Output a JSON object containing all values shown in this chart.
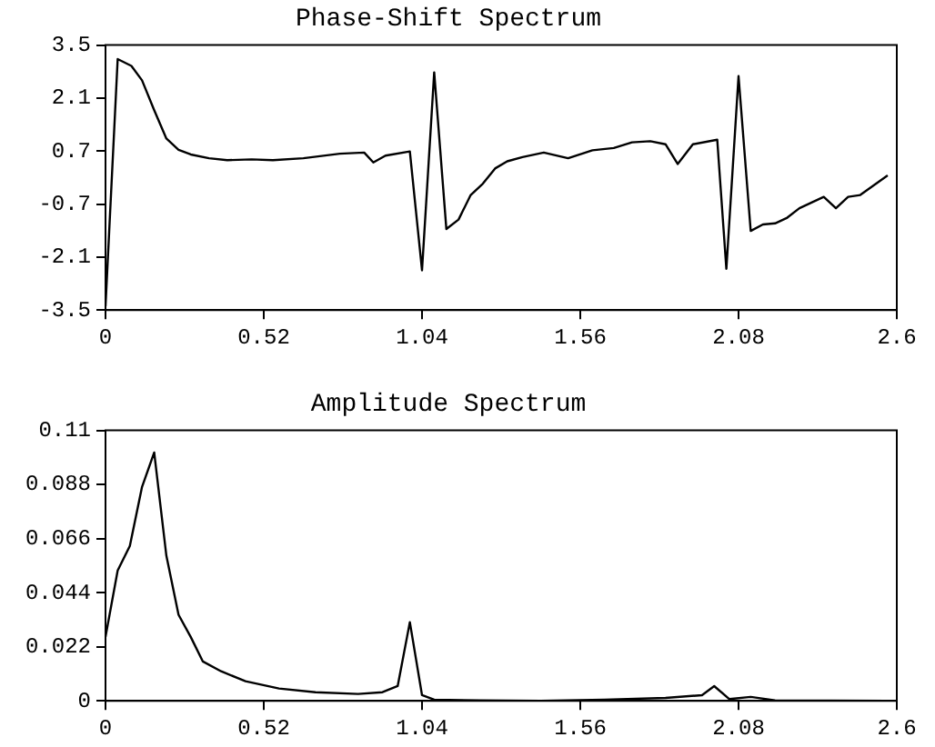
{
  "chart_data": [
    {
      "type": "line",
      "title": "Phase-Shift Spectrum",
      "xlim": [
        0,
        2.6
      ],
      "xticks": [
        0,
        0.52,
        1.04,
        1.56,
        2.08,
        2.6
      ],
      "ylim": [
        -3.5,
        3.5
      ],
      "yticks": [
        -3.5,
        -2.1,
        -0.7,
        0.7,
        2.1,
        3.5
      ],
      "grid": false,
      "legend": false,
      "marker": "none",
      "series": [
        {
          "color": "#000000",
          "x": [
            0,
            0.04,
            0.085,
            0.12,
            0.16,
            0.2,
            0.24,
            0.28,
            0.34,
            0.4,
            0.48,
            0.55,
            0.65,
            0.77,
            0.85,
            0.88,
            0.92,
            1.0,
            1.04,
            1.08,
            1.12,
            1.16,
            1.2,
            1.24,
            1.28,
            1.32,
            1.37,
            1.44,
            1.52,
            1.6,
            1.67,
            1.73,
            1.79,
            1.84,
            1.88,
            1.93,
            2.01,
            2.04,
            2.08,
            2.12,
            2.16,
            2.2,
            2.24,
            2.28,
            2.32,
            2.36,
            2.4,
            2.44,
            2.48,
            2.57
          ],
          "values": [
            -3.4,
            3.13,
            2.95,
            2.57,
            1.78,
            1.03,
            0.73,
            0.61,
            0.51,
            0.46,
            0.48,
            0.46,
            0.51,
            0.63,
            0.66,
            0.4,
            0.58,
            0.69,
            -2.45,
            2.78,
            -1.36,
            -1.11,
            -0.46,
            -0.16,
            0.24,
            0.43,
            0.54,
            0.66,
            0.51,
            0.72,
            0.78,
            0.93,
            0.96,
            0.88,
            0.36,
            0.88,
            1.0,
            -2.41,
            2.68,
            -1.41,
            -1.24,
            -1.21,
            -1.06,
            -0.81,
            -0.66,
            -0.51,
            -0.81,
            -0.51,
            -0.46,
            0.06
          ]
        }
      ]
    },
    {
      "type": "line",
      "title": "Amplitude Spectrum",
      "xlim": [
        0,
        2.6
      ],
      "xticks": [
        0,
        0.52,
        1.04,
        1.56,
        2.08,
        2.6
      ],
      "ylim": [
        0,
        0.11
      ],
      "yticks": [
        0,
        0.022,
        0.044,
        0.066,
        0.088,
        0.11
      ],
      "grid": false,
      "legend": false,
      "marker": "none",
      "series": [
        {
          "color": "#000000",
          "x": [
            0,
            0.04,
            0.08,
            0.12,
            0.16,
            0.2,
            0.24,
            0.28,
            0.32,
            0.38,
            0.46,
            0.57,
            0.69,
            0.83,
            0.91,
            0.96,
            1.0,
            1.04,
            1.08,
            1.23,
            1.43,
            1.64,
            1.84,
            1.96,
            2.0,
            2.05,
            2.12,
            2.2,
            2.57
          ],
          "values": [
            0.026,
            0.053,
            0.063,
            0.087,
            0.101,
            0.059,
            0.035,
            0.026,
            0.016,
            0.012,
            0.008,
            0.005,
            0.0035,
            0.0028,
            0.0035,
            0.006,
            0.032,
            0.0023,
            0.0005,
            0.0002,
            0,
            0.0005,
            0.0012,
            0.0023,
            0.006,
            0.0007,
            0.0016,
            0.0002,
            0
          ]
        }
      ]
    }
  ]
}
